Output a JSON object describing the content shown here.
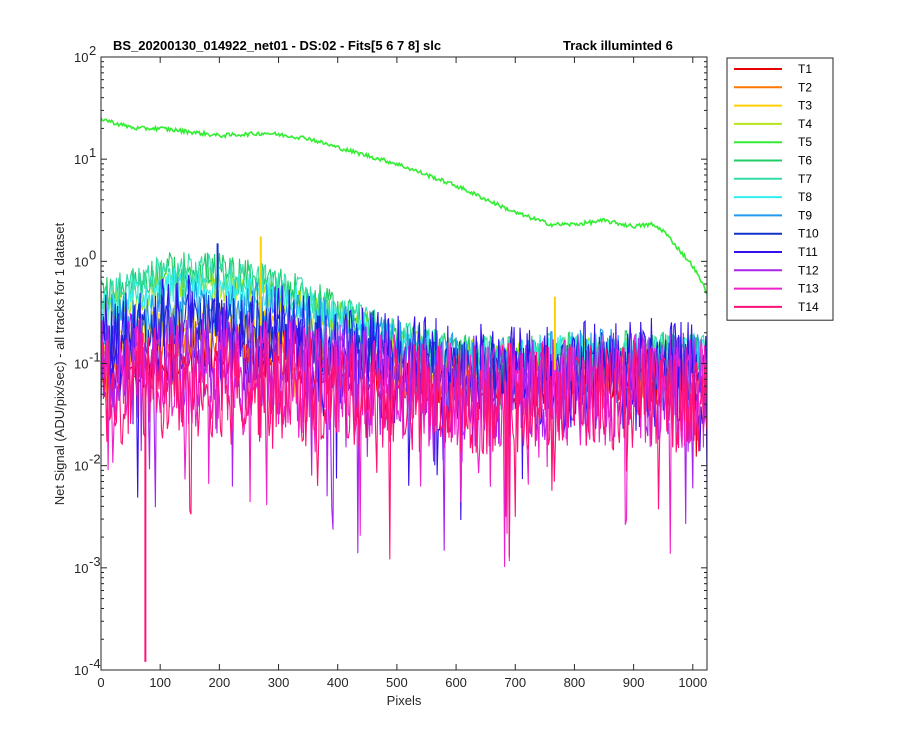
{
  "chart_data": {
    "type": "line",
    "title": "BS_20200130_014922_net01 - DS:02 - Fits[5  6  7  8]   slc",
    "subtitle": "Track illuminted 6",
    "xlabel": "Pixels",
    "ylabel": "Net Signal (ADU/pix/sec) - all tracks for 1 dataset",
    "xlim": [
      0,
      1024
    ],
    "ylim": [
      0.0001,
      100
    ],
    "yscale": "log",
    "grid": false,
    "legend_position": "outside-top-right",
    "x_ticks": [
      "0",
      "100",
      "200",
      "300",
      "400",
      "500",
      "600",
      "700",
      "800",
      "900",
      "1000"
    ],
    "y_ticks": [
      {
        "base": "10",
        "exp": "-4"
      },
      {
        "base": "10",
        "exp": "-3"
      },
      {
        "base": "10",
        "exp": "-2"
      },
      {
        "base": "10",
        "exp": "-1"
      },
      {
        "base": "10",
        "exp": "0"
      },
      {
        "base": "10",
        "exp": "1"
      },
      {
        "base": "10",
        "exp": "2"
      }
    ],
    "series": [
      {
        "name": "T1",
        "color": "#e60000",
        "points": [
          [
            0,
            0.06
          ],
          [
            100,
            0.1
          ],
          [
            200,
            0.12
          ],
          [
            300,
            0.1
          ],
          [
            400,
            0.08
          ],
          [
            500,
            0.06
          ],
          [
            600,
            0.055
          ],
          [
            700,
            0.055
          ],
          [
            800,
            0.065
          ],
          [
            900,
            0.06
          ],
          [
            1024,
            0.055
          ]
        ]
      },
      {
        "name": "T2",
        "color": "#ff7700",
        "points": [
          [
            0,
            0.09
          ],
          [
            100,
            0.16
          ],
          [
            150,
            0.18
          ],
          [
            200,
            0.17
          ],
          [
            300,
            0.14
          ],
          [
            400,
            0.1
          ],
          [
            500,
            0.07
          ],
          [
            600,
            0.065
          ],
          [
            700,
            0.065
          ],
          [
            800,
            0.075
          ],
          [
            900,
            0.07
          ],
          [
            1024,
            0.065
          ]
        ]
      },
      {
        "name": "T3",
        "color": "#ffd000",
        "points": [
          [
            0,
            0.14
          ],
          [
            100,
            0.26
          ],
          [
            150,
            0.28
          ],
          [
            200,
            0.27
          ],
          [
            300,
            0.22
          ],
          [
            400,
            0.15
          ],
          [
            500,
            0.1
          ],
          [
            600,
            0.085
          ],
          [
            700,
            0.08
          ],
          [
            800,
            0.09
          ],
          [
            900,
            0.09
          ],
          [
            1024,
            0.085
          ]
        ]
      },
      {
        "name": "T4",
        "color": "#b6e61a",
        "points": [
          [
            0,
            0.3
          ],
          [
            100,
            0.55
          ],
          [
            150,
            0.6
          ],
          [
            200,
            0.58
          ],
          [
            300,
            0.45
          ],
          [
            400,
            0.28
          ],
          [
            500,
            0.17
          ],
          [
            600,
            0.12
          ],
          [
            700,
            0.11
          ],
          [
            800,
            0.12
          ],
          [
            900,
            0.12
          ],
          [
            1024,
            0.11
          ]
        ]
      },
      {
        "name": "T5",
        "color": "#33ee33",
        "points": [
          [
            0,
            25
          ],
          [
            30,
            22
          ],
          [
            60,
            20
          ],
          [
            100,
            20
          ],
          [
            150,
            18.5
          ],
          [
            200,
            17
          ],
          [
            280,
            18
          ],
          [
            350,
            16
          ],
          [
            400,
            13
          ],
          [
            500,
            9
          ],
          [
            600,
            5.5
          ],
          [
            700,
            3
          ],
          [
            760,
            2.3
          ],
          [
            800,
            2.3
          ],
          [
            850,
            2.5
          ],
          [
            900,
            2.2
          ],
          [
            930,
            2.3
          ],
          [
            950,
            2.0
          ],
          [
            1000,
            0.9
          ],
          [
            1024,
            0.5
          ]
        ]
      },
      {
        "name": "T6",
        "color": "#22cc66",
        "points": [
          [
            0,
            0.45
          ],
          [
            100,
            0.8
          ],
          [
            150,
            0.85
          ],
          [
            200,
            0.82
          ],
          [
            300,
            0.6
          ],
          [
            400,
            0.33
          ],
          [
            500,
            0.18
          ],
          [
            600,
            0.13
          ],
          [
            700,
            0.12
          ],
          [
            800,
            0.14
          ],
          [
            900,
            0.14
          ],
          [
            1024,
            0.13
          ]
        ]
      },
      {
        "name": "T7",
        "color": "#33ddaa",
        "points": [
          [
            0,
            0.42
          ],
          [
            100,
            0.75
          ],
          [
            150,
            0.8
          ],
          [
            200,
            0.78
          ],
          [
            300,
            0.58
          ],
          [
            400,
            0.32
          ],
          [
            500,
            0.18
          ],
          [
            600,
            0.13
          ],
          [
            700,
            0.12
          ],
          [
            800,
            0.14
          ],
          [
            900,
            0.14
          ],
          [
            1024,
            0.13
          ]
        ]
      },
      {
        "name": "T8",
        "color": "#33eeee",
        "points": [
          [
            0,
            0.33
          ],
          [
            100,
            0.55
          ],
          [
            150,
            0.6
          ],
          [
            200,
            0.58
          ],
          [
            300,
            0.45
          ],
          [
            400,
            0.27
          ],
          [
            500,
            0.16
          ],
          [
            600,
            0.12
          ],
          [
            700,
            0.11
          ],
          [
            800,
            0.13
          ],
          [
            900,
            0.13
          ],
          [
            1024,
            0.12
          ]
        ]
      },
      {
        "name": "T9",
        "color": "#2299ee",
        "points": [
          [
            0,
            0.22
          ],
          [
            100,
            0.35
          ],
          [
            150,
            0.38
          ],
          [
            200,
            0.36
          ],
          [
            300,
            0.3
          ],
          [
            400,
            0.2
          ],
          [
            500,
            0.13
          ],
          [
            600,
            0.1
          ],
          [
            700,
            0.095
          ],
          [
            800,
            0.11
          ],
          [
            900,
            0.11
          ],
          [
            1024,
            0.1
          ]
        ]
      },
      {
        "name": "T10",
        "color": "#1133cc",
        "points": [
          [
            0,
            0.15
          ],
          [
            100,
            0.24
          ],
          [
            150,
            0.26
          ],
          [
            200,
            0.25
          ],
          [
            300,
            0.2
          ],
          [
            400,
            0.14
          ],
          [
            500,
            0.1
          ],
          [
            600,
            0.085
          ],
          [
            700,
            0.08
          ],
          [
            800,
            0.09
          ],
          [
            900,
            0.09
          ],
          [
            1024,
            0.085
          ]
        ]
      },
      {
        "name": "T11",
        "color": "#3311ee",
        "points": [
          [
            0,
            0.13
          ],
          [
            100,
            0.2
          ],
          [
            150,
            0.22
          ],
          [
            200,
            0.21
          ],
          [
            300,
            0.17
          ],
          [
            400,
            0.12
          ],
          [
            500,
            0.09
          ],
          [
            600,
            0.075
          ],
          [
            700,
            0.07
          ],
          [
            800,
            0.08
          ],
          [
            900,
            0.08
          ],
          [
            1024,
            0.075
          ]
        ]
      },
      {
        "name": "T12",
        "color": "#aa22ee",
        "points": [
          [
            0,
            0.08
          ],
          [
            100,
            0.11
          ],
          [
            200,
            0.11
          ],
          [
            300,
            0.1
          ],
          [
            400,
            0.08
          ],
          [
            500,
            0.065
          ],
          [
            600,
            0.055
          ],
          [
            700,
            0.055
          ],
          [
            800,
            0.06
          ],
          [
            900,
            0.06
          ],
          [
            1024,
            0.055
          ]
        ]
      },
      {
        "name": "T13",
        "color": "#ee22cc",
        "points": [
          [
            0,
            0.065
          ],
          [
            100,
            0.08
          ],
          [
            200,
            0.08
          ],
          [
            300,
            0.075
          ],
          [
            400,
            0.065
          ],
          [
            500,
            0.055
          ],
          [
            600,
            0.05
          ],
          [
            700,
            0.05
          ],
          [
            800,
            0.055
          ],
          [
            900,
            0.055
          ],
          [
            1024,
            0.05
          ]
        ]
      },
      {
        "name": "T14",
        "color": "#ff1177",
        "points": [
          [
            0,
            0.055
          ],
          [
            100,
            0.065
          ],
          [
            200,
            0.065
          ],
          [
            300,
            0.062
          ],
          [
            400,
            0.055
          ],
          [
            500,
            0.05
          ],
          [
            600,
            0.045
          ],
          [
            700,
            0.045
          ],
          [
            800,
            0.05
          ],
          [
            900,
            0.05
          ],
          [
            1024,
            0.045
          ]
        ]
      }
    ],
    "annotations": [
      {
        "series": "T10",
        "x": 197,
        "y": 1.5
      },
      {
        "series": "T3",
        "x": 270,
        "y": 1.75
      },
      {
        "series": "T3",
        "x": 767,
        "y": 0.45
      },
      {
        "series": "T14",
        "x": 75,
        "y": 0.00012
      }
    ]
  }
}
